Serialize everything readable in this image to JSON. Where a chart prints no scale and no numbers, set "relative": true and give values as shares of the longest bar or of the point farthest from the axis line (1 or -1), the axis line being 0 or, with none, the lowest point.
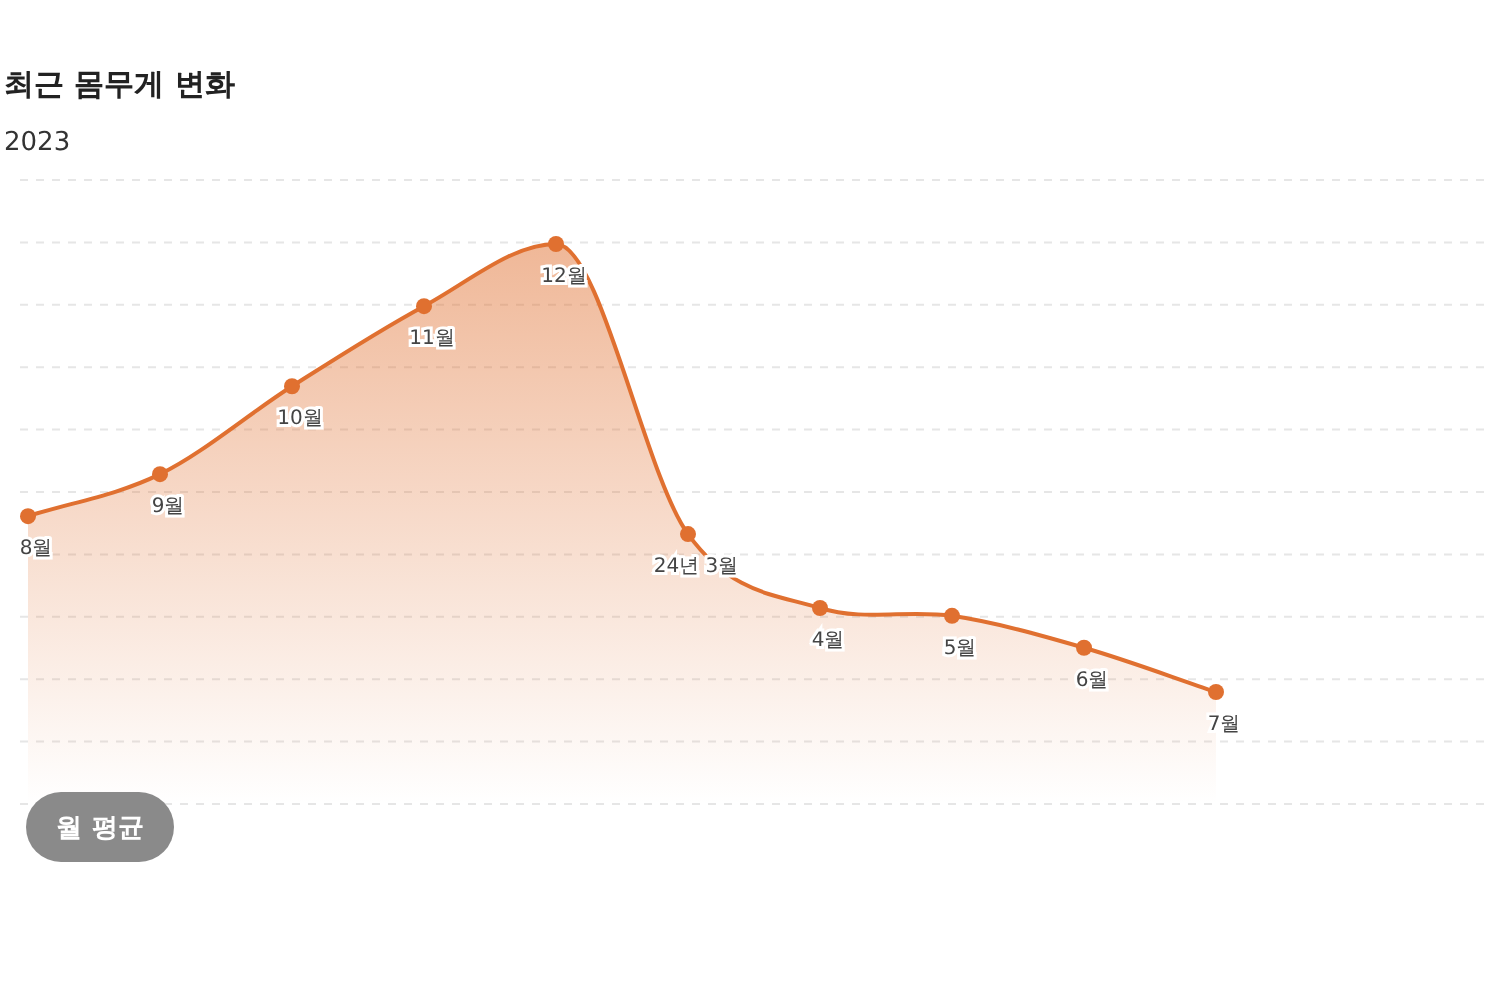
{
  "chart_data": {
    "type": "area",
    "title": "최근 몸무게 변화",
    "subtitle": "2023",
    "categories": [
      "8월",
      "9월",
      "10월",
      "11월",
      "12월",
      "24년 3월",
      "4월",
      "5월",
      "6월",
      "7월"
    ],
    "values": [
      0.514,
      0.589,
      0.746,
      0.889,
      1,
      0.482,
      0.35,
      0.336,
      0.279,
      0.2
    ],
    "color": "#e07030",
    "relative": true,
    "grid": "y",
    "marker": "circle",
    "annotations": [
      "월 평균"
    ]
  }
}
